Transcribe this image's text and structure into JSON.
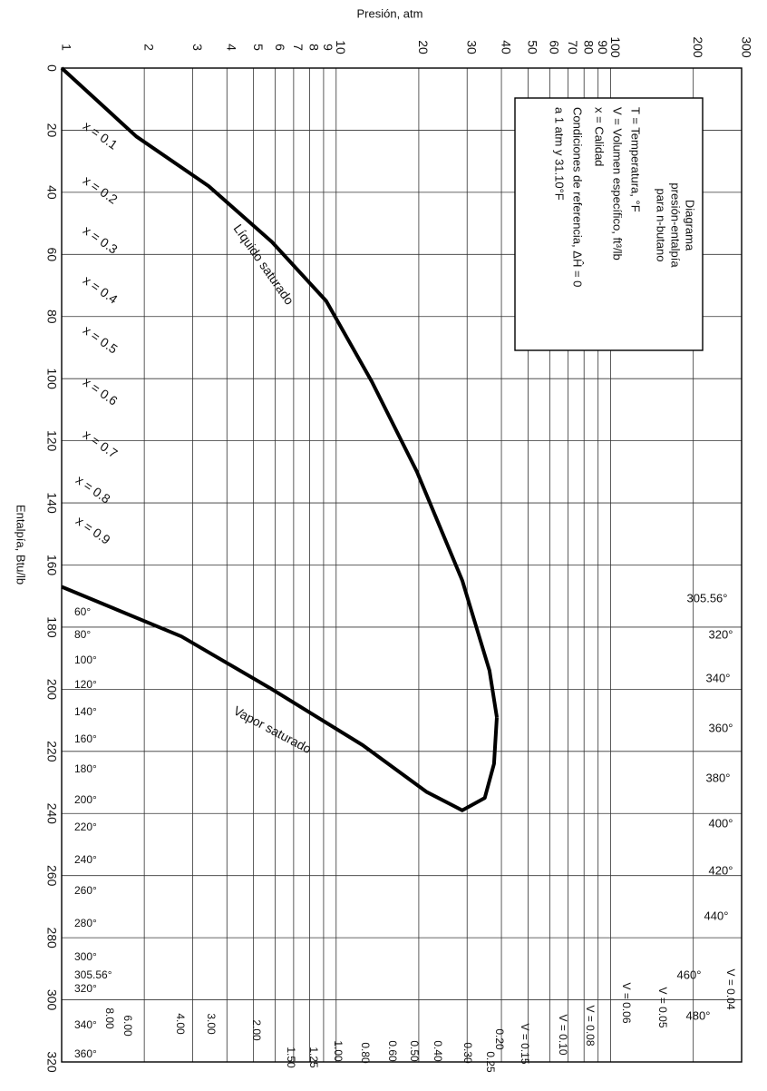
{
  "chart_data": {
    "type": "line",
    "x_label": "Presión, atm",
    "y_label": "Entalpía, Btu/lb",
    "xscale": "log",
    "xlim": [
      1,
      300
    ],
    "xticks": [
      1,
      2,
      3,
      4,
      5,
      6,
      7,
      8,
      9,
      10,
      20,
      30,
      40,
      50,
      60,
      70,
      80,
      90,
      100,
      200,
      300
    ],
    "ylim": [
      0,
      320
    ],
    "yticks": [
      0,
      20,
      40,
      60,
      80,
      100,
      120,
      140,
      160,
      180,
      200,
      220,
      240,
      260,
      280,
      300,
      320
    ],
    "grid": true,
    "series": [
      {
        "name": "Líquido saturado",
        "color": "#000000",
        "x": [
          1,
          1.87,
          3.43,
          5.84,
          9.2,
          13.5,
          19.7,
          28.8,
          36.2,
          38.5
        ],
        "values": [
          0,
          22,
          38,
          56,
          75,
          101,
          130,
          165,
          194,
          209
        ]
      },
      {
        "name": "Vapor saturado",
        "color": "#000000",
        "x": [
          1,
          2.73,
          5.84,
          12.5,
          21.3,
          28.8,
          34.8,
          37.6,
          38.5
        ],
        "values": [
          167,
          183,
          200,
          218,
          233,
          239,
          235,
          224,
          209
        ]
      }
    ],
    "legend_box": [
      "Diagrama",
      "presión-entalpía",
      "para n-butano",
      "T = Temperatura, °F",
      "V = Volumen específico, ft³/lb",
      "x = Calidad",
      "Condiciones de referencia, ΔĤ = 0",
      "a 1 atm y 31.10°F"
    ],
    "quality_labels": [
      "x = 0.1",
      "x = 0.2",
      "x = 0.3",
      "x = 0.4",
      "x = 0.5",
      "x = 0.6",
      "x = 0.7",
      "x = 0.8",
      "x = 0.9"
    ],
    "temperature_labels_left": [
      "60°",
      "80°",
      "100°",
      "120°",
      "140°",
      "160°",
      "180°",
      "200°",
      "220°",
      "240°",
      "260°",
      "280°",
      "300°",
      "305.56°",
      "320°",
      "340°",
      "360°"
    ],
    "temperature_labels_right": [
      "305.56°",
      "320°",
      "340°",
      "360°",
      "380°",
      "400°",
      "420°",
      "440°",
      "460°",
      "480°"
    ],
    "volume_labels": [
      "V = 0.04",
      "V = 0.05",
      "V = 0.06",
      "V = 0.08",
      "V = 0.10",
      "V = 0.15",
      "0.20",
      "0.25",
      "0.30",
      "0.40",
      "0.50",
      "0.60",
      "0.80",
      "1.00",
      "1.25",
      "1.50",
      "2.00",
      "3.00",
      "4.00",
      "6.00",
      "8.00"
    ]
  }
}
